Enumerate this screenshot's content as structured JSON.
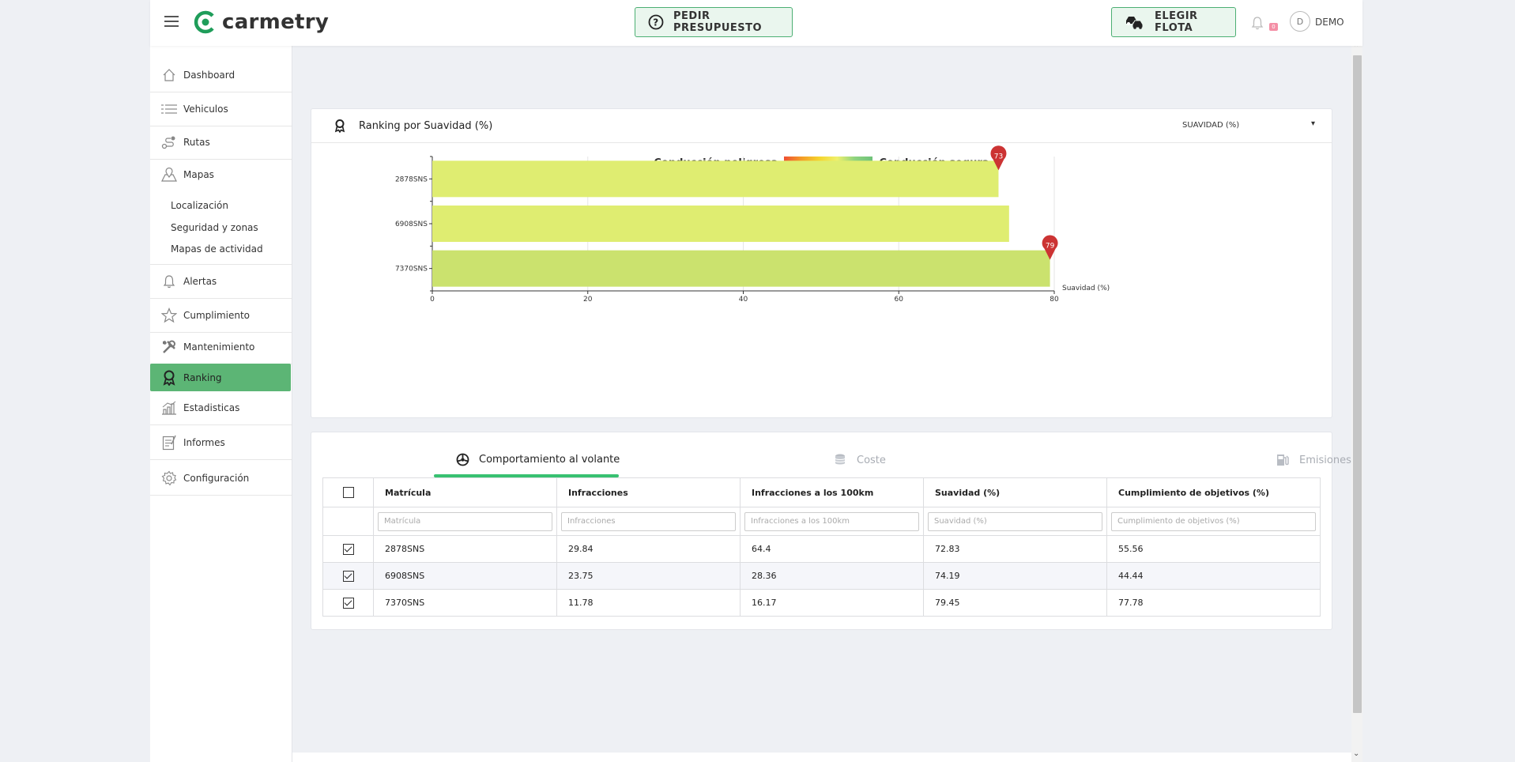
{
  "header": {
    "brand": "carmetry",
    "quote_button": "PEDIR PRESUPUESTO",
    "fleet_button": "ELEGIR FLOTA",
    "notifications_count": "0",
    "avatar_initial": "D",
    "user_name": "DEMO"
  },
  "sidebar": {
    "items": [
      {
        "label": "Dashboard",
        "icon": "home-icon"
      },
      {
        "label": "Vehiculos",
        "icon": "list-icon"
      },
      {
        "label": "Rutas",
        "icon": "route-icon"
      },
      {
        "label": "Mapas",
        "icon": "map-icon"
      },
      {
        "label": "Alertas",
        "icon": "bell-icon"
      },
      {
        "label": "Cumplimiento",
        "icon": "star-icon"
      },
      {
        "label": "Mantenimiento",
        "icon": "tools-icon"
      },
      {
        "label": "Ranking",
        "icon": "award-icon"
      },
      {
        "label": "Estadisticas",
        "icon": "stats-icon"
      },
      {
        "label": "Informes",
        "icon": "report-icon"
      },
      {
        "label": "Configuración",
        "icon": "gear-icon"
      }
    ],
    "map_subitems": [
      "Localización",
      "Seguridad y zonas",
      "Mapas de actividad"
    ],
    "active": "Ranking"
  },
  "ranking_card": {
    "title": "Ranking por Suavidad (%)",
    "metric_select": "SUAVIDAD (%)",
    "legend_left": "Conducción peligrosa",
    "legend_right": "Conducción segura"
  },
  "chart_data": {
    "type": "bar",
    "orientation": "horizontal",
    "categories": [
      "2878SNS",
      "6908SNS",
      "7370SNS"
    ],
    "values": [
      72.83,
      74.19,
      79.45
    ],
    "markers": [
      {
        "category": "2878SNS",
        "label": "73"
      },
      {
        "category": "7370SNS",
        "label": "79"
      }
    ],
    "bar_colors": [
      "#dfed71",
      "#dfed71",
      "#cbe26e"
    ],
    "marker_color": "#cc3333",
    "xlabel": "Suavidad (%)",
    "xlim": [
      0,
      80
    ],
    "xticks": [
      "0",
      "20",
      "40",
      "60",
      "80"
    ],
    "grid": true
  },
  "tabs": [
    {
      "label": "Comportamiento al volante",
      "active": true
    },
    {
      "label": "Coste",
      "active": false
    },
    {
      "label": "Emisiones",
      "active": false
    }
  ],
  "table": {
    "columns": [
      "Matrícula",
      "Infracciones",
      "Infracciones a los 100km",
      "Suavidad (%)",
      "Cumplimiento de objetivos (%)"
    ],
    "filters": [
      "Matrícula",
      "Infracciones",
      "Infracciones a los 100km",
      "Suavidad (%)",
      "Cumplimiento de objetivos (%)"
    ],
    "rows": [
      {
        "checked": true,
        "cells": [
          "2878SNS",
          "29.84",
          "64.4",
          "72.83",
          "55.56"
        ]
      },
      {
        "checked": true,
        "cells": [
          "6908SNS",
          "23.75",
          "28.36",
          "74.19",
          "44.44"
        ]
      },
      {
        "checked": true,
        "cells": [
          "7370SNS",
          "11.78",
          "16.17",
          "79.45",
          "77.78"
        ]
      }
    ]
  }
}
